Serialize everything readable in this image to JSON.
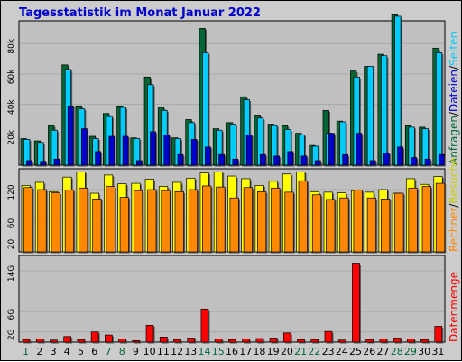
{
  "title": "Tagesstatistik im Monat Januar 2022",
  "colors": {
    "anfragen": "#006633",
    "dateien": "#00ccff",
    "seiten": "#0000cc",
    "besuche": "#ffff00",
    "rechner": "#ff8800",
    "datenmenge": "#ff0000",
    "plot_bg": "#c0c0c0",
    "frame_bg": "#cccccc",
    "weekend": "#006633",
    "weekday": "#000000"
  },
  "right_labels": {
    "top": [
      {
        "text": "Anfragen",
        "color": "#006633"
      },
      {
        "text": "/",
        "color": "#000000"
      },
      {
        "text": "Dateien",
        "color": "#0000cc"
      },
      {
        "text": "/",
        "color": "#000000"
      },
      {
        "text": "Seiten",
        "color": "#00ccff"
      }
    ],
    "middle": [
      {
        "text": "Rechner",
        "color": "#ff8800"
      },
      {
        "text": "/",
        "color": "#000000"
      },
      {
        "text": "Besuche",
        "color": "#cccc00"
      }
    ],
    "bottom": [
      {
        "text": "Datenmenge",
        "color": "#ff0000"
      }
    ]
  },
  "chart_data": [
    {
      "type": "bar",
      "panel": "top",
      "categories": [
        "1",
        "2",
        "3",
        "4",
        "5",
        "6",
        "7",
        "8",
        "9",
        "10",
        "11",
        "12",
        "13",
        "14",
        "15",
        "16",
        "17",
        "18",
        "19",
        "20",
        "21",
        "22",
        "23",
        "24",
        "25",
        "26",
        "27",
        "28",
        "29",
        "30",
        "31"
      ],
      "ylim": [
        0,
        95000
      ],
      "yticks": [
        20000,
        40000,
        60000,
        80000
      ],
      "ytick_labels": [
        "20k",
        "40k",
        "60k",
        "80k"
      ],
      "series": [
        {
          "name": "Anfragen",
          "values": [
            17500,
            16000,
            26000,
            66000,
            39000,
            19000,
            34000,
            39000,
            18000,
            58000,
            38000,
            18000,
            30000,
            90000,
            24000,
            28000,
            45000,
            33000,
            27000,
            26000,
            21000,
            13000,
            36000,
            29000,
            62000,
            65000,
            73000,
            99000,
            26000,
            25000,
            77000
          ]
        },
        {
          "name": "Dateien",
          "values": [
            17000,
            15000,
            23000,
            63000,
            37000,
            17500,
            32000,
            38000,
            17500,
            53000,
            36000,
            17500,
            28000,
            74000,
            23000,
            27000,
            43000,
            31000,
            26000,
            23500,
            20000,
            12500,
            21000,
            28500,
            58000,
            65000,
            72000,
            98000,
            25000,
            24000,
            74000
          ]
        },
        {
          "name": "Seiten",
          "values": [
            3000,
            2500,
            4000,
            39000,
            24000,
            9000,
            19000,
            19000,
            3000,
            22000,
            20000,
            7000,
            17000,
            12000,
            7000,
            4000,
            20000,
            7000,
            6000,
            9000,
            6000,
            3000,
            21000,
            7000,
            21000,
            3000,
            8000,
            12000,
            5000,
            4000,
            7000
          ]
        }
      ]
    },
    {
      "type": "bar",
      "panel": "middle",
      "categories": [
        "1",
        "2",
        "3",
        "4",
        "5",
        "6",
        "7",
        "8",
        "9",
        "10",
        "11",
        "12",
        "13",
        "14",
        "15",
        "16",
        "17",
        "18",
        "19",
        "20",
        "21",
        "22",
        "23",
        "24",
        "25",
        "26",
        "27",
        "28",
        "29",
        "30",
        "31"
      ],
      "ylim": [
        0,
        160
      ],
      "yticks": [
        20,
        60,
        120
      ],
      "ytick_labels": [
        "20",
        "60",
        "120"
      ],
      "series": [
        {
          "name": "Besuche",
          "values": [
            128,
            134,
            116,
            144,
            154,
            113,
            148,
            131,
            132,
            140,
            126,
            134,
            142,
            152,
            154,
            146,
            141,
            128,
            136,
            150,
            154,
            116,
            115,
            114,
            118,
            115,
            120,
            113,
            141,
            130,
            145
          ]
        },
        {
          "name": "Rechner",
          "values": [
            124,
            120,
            114,
            119,
            123,
            102,
            126,
            105,
            118,
            120,
            118,
            116,
            120,
            127,
            125,
            104,
            124,
            116,
            123,
            115,
            137,
            110,
            101,
            104,
            119,
            104,
            102,
            113,
            123,
            126,
            132
          ]
        }
      ]
    },
    {
      "type": "bar",
      "panel": "bottom",
      "categories": [
        "1",
        "2",
        "3",
        "4",
        "5",
        "6",
        "7",
        "8",
        "9",
        "10",
        "11",
        "12",
        "13",
        "14",
        "15",
        "16",
        "17",
        "18",
        "19",
        "20",
        "21",
        "22",
        "23",
        "24",
        "25",
        "26",
        "27",
        "28",
        "29",
        "30",
        "31"
      ],
      "ylim": [
        0,
        17
      ],
      "yticks": [
        2,
        6,
        14
      ],
      "ytick_labels": [
        "2G",
        "6G",
        "14G"
      ],
      "series": [
        {
          "name": "Datenmenge",
          "values": [
            0.5,
            0.6,
            0.4,
            1.1,
            0.5,
            2.0,
            1.4,
            0.6,
            0.3,
            3.3,
            1.0,
            0.5,
            0.8,
            6.5,
            0.6,
            0.5,
            0.6,
            0.7,
            0.8,
            1.8,
            0.5,
            0.5,
            2.1,
            0.4,
            15.5,
            0.5,
            0.6,
            0.8,
            0.6,
            0.5,
            3.1
          ]
        }
      ]
    }
  ]
}
